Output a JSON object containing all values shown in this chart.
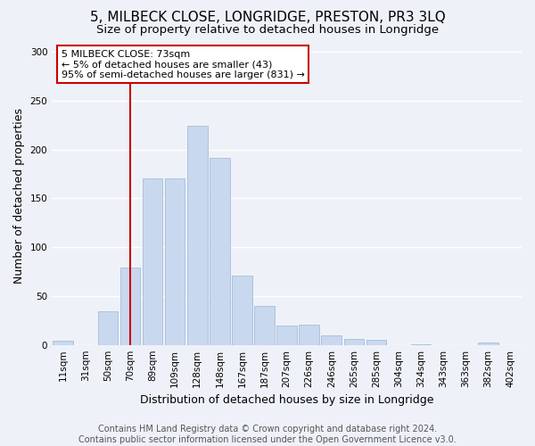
{
  "title": "5, MILBECK CLOSE, LONGRIDGE, PRESTON, PR3 3LQ",
  "subtitle": "Size of property relative to detached houses in Longridge",
  "xlabel": "Distribution of detached houses by size in Longridge",
  "ylabel": "Number of detached properties",
  "bar_labels": [
    "11sqm",
    "31sqm",
    "50sqm",
    "70sqm",
    "89sqm",
    "109sqm",
    "128sqm",
    "148sqm",
    "167sqm",
    "187sqm",
    "207sqm",
    "226sqm",
    "246sqm",
    "265sqm",
    "285sqm",
    "304sqm",
    "324sqm",
    "343sqm",
    "363sqm",
    "382sqm",
    "402sqm"
  ],
  "bar_heights": [
    4,
    0,
    34,
    79,
    170,
    170,
    224,
    191,
    71,
    40,
    20,
    21,
    10,
    6,
    5,
    0,
    1,
    0,
    0,
    2,
    0
  ],
  "bar_color": "#c8d8ee",
  "bar_edge_color": "#a8bcd8",
  "vline_x": 3,
  "vline_color": "#cc0000",
  "annotation_title": "5 MILBECK CLOSE: 73sqm",
  "annotation_line1": "← 5% of detached houses are smaller (43)",
  "annotation_line2": "95% of semi-detached houses are larger (831) →",
  "annotation_box_edge": "#cc0000",
  "ylim": [
    0,
    305
  ],
  "yticks": [
    0,
    50,
    100,
    150,
    200,
    250,
    300
  ],
  "footer1": "Contains HM Land Registry data © Crown copyright and database right 2024.",
  "footer2": "Contains public sector information licensed under the Open Government Licence v3.0.",
  "bg_color": "#eef2f8",
  "plot_bg_color": "#eef2f8",
  "grid_color": "#ffffff",
  "title_fontsize": 11,
  "subtitle_fontsize": 9.5,
  "axis_label_fontsize": 9,
  "tick_fontsize": 7.5,
  "annotation_fontsize": 8,
  "footer_fontsize": 7
}
